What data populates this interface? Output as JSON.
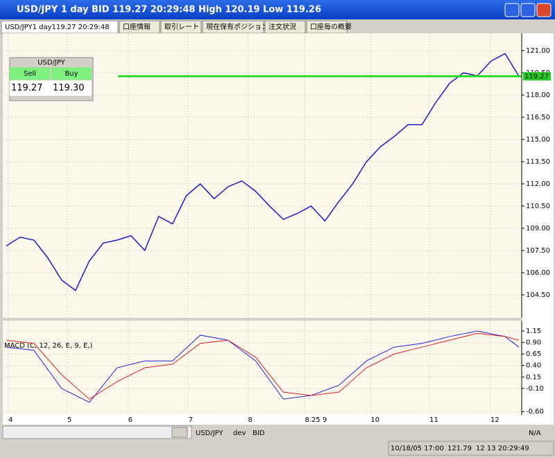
{
  "window": {
    "title": "USD/JPY 1 day BID 119.27 20:29:48 High 120.19 Low 119.26"
  },
  "tabs": [
    "USD/JPY1 day119.27 20:29:48",
    "口座情報",
    "取引レート",
    "現在保有ポジション",
    "注文状況",
    "口座毎の概要"
  ],
  "quote": {
    "symbol": "USD/JPY",
    "sell_label": "Sell",
    "buy_label": "Buy",
    "sell": "119.27",
    "buy": "119.30"
  },
  "chart_data": [
    {
      "type": "line",
      "current_price": 119.27,
      "x": [
        1,
        6,
        11,
        16,
        21,
        26,
        31,
        36,
        41,
        46,
        51,
        56,
        61,
        66,
        71,
        76,
        81,
        86,
        91,
        96,
        101,
        106,
        111,
        116,
        121,
        126,
        131,
        136,
        141,
        146,
        151,
        156,
        161,
        166,
        171,
        176,
        181,
        186
      ],
      "series": [
        {
          "color": "#1a1acc",
          "values": [
            107.8,
            108.4,
            108.2,
            107.0,
            105.5,
            104.8,
            106.8,
            108.0,
            108.2,
            108.5,
            107.5,
            109.8,
            109.3,
            111.2,
            112.0,
            111.0,
            111.8,
            112.2,
            111.5,
            110.5,
            109.6,
            110.0,
            110.5,
            109.5,
            110.8,
            112.0,
            113.5,
            114.5,
            115.2,
            116.0,
            116.0,
            117.5,
            118.8,
            119.5,
            119.3,
            120.3,
            120.8,
            119.27
          ]
        }
      ],
      "xlim": [
        0,
        187
      ],
      "ylim": [
        102.95,
        122.17
      ],
      "yticks": [
        {
          "value": 121,
          "label": "121.00"
        },
        {
          "value": 119.5,
          "label": "119.50"
        },
        {
          "value": 118,
          "label": "118.00"
        },
        {
          "value": 116.5,
          "label": "116.50"
        },
        {
          "value": 115,
          "label": "115.00"
        },
        {
          "value": 113.5,
          "label": "113.50"
        },
        {
          "value": 112,
          "label": "112.00"
        },
        {
          "value": 110.5,
          "label": "110.50"
        },
        {
          "value": 109,
          "label": "109.00"
        },
        {
          "value": 107.5,
          "label": "107.50"
        },
        {
          "value": 106,
          "label": "106.00"
        },
        {
          "value": 104.5,
          "label": "104.50"
        }
      ],
      "grid": true
    },
    {
      "type": "line",
      "title": "MACD (C, 12, 26, E, 9, E,)",
      "x": [
        1,
        11,
        21,
        31,
        41,
        51,
        61,
        71,
        81,
        91,
        101,
        111,
        121,
        131,
        141,
        151,
        161,
        171,
        181,
        186
      ],
      "series": [
        {
          "color": "#2020e0",
          "values": [
            0.8,
            0.73,
            -0.1,
            -0.4,
            0.35,
            0.5,
            0.5,
            1.06,
            0.95,
            0.5,
            -0.33,
            -0.25,
            -0.03,
            0.5,
            0.8,
            0.88,
            1.03,
            1.15,
            1.03,
            0.8
          ]
        },
        {
          "color": "#e02020",
          "values": [
            0.95,
            0.88,
            0.2,
            -0.33,
            0.05,
            0.35,
            0.43,
            0.88,
            0.95,
            0.58,
            -0.18,
            -0.25,
            -0.18,
            0.35,
            0.65,
            0.8,
            0.95,
            1.1,
            1.03,
            0.95
          ]
        }
      ],
      "xlim": [
        0,
        187
      ],
      "ylim": [
        -0.675,
        1.376
      ],
      "yticks": [
        {
          "value": 1.15,
          "label": "1.15"
        },
        {
          "value": 0.9,
          "label": "0.90"
        },
        {
          "value": 0.65,
          "label": "0.65"
        },
        {
          "value": 0.4,
          "label": "0.40"
        },
        {
          "value": 0.15,
          "label": "0.15"
        },
        {
          "value": -0.1,
          "label": "-0.10"
        },
        {
          "value": -0.6,
          "label": "-0.60"
        }
      ],
      "xticks": [
        {
          "value": 1.75,
          "label": "4"
        },
        {
          "value": 23,
          "label": "5"
        },
        {
          "value": 45,
          "label": "6"
        },
        {
          "value": 66.75,
          "label": "7"
        },
        {
          "value": 88.25,
          "label": "8"
        },
        {
          "value": 108.75,
          "label": "8.25 9"
        },
        {
          "value": 132.5,
          "label": "10"
        },
        {
          "value": 153.75,
          "label": "11"
        },
        {
          "value": 175.75,
          "label": "12"
        }
      ],
      "grid": true
    }
  ],
  "toolbar": {
    "symbol": "USD/JPY",
    "account": "dev",
    "side": "BID"
  },
  "status": {
    "time": "10/18/05 17:00",
    "price": "121.79",
    "clock": "12 13 20:29:49",
    "na": "N/A"
  }
}
